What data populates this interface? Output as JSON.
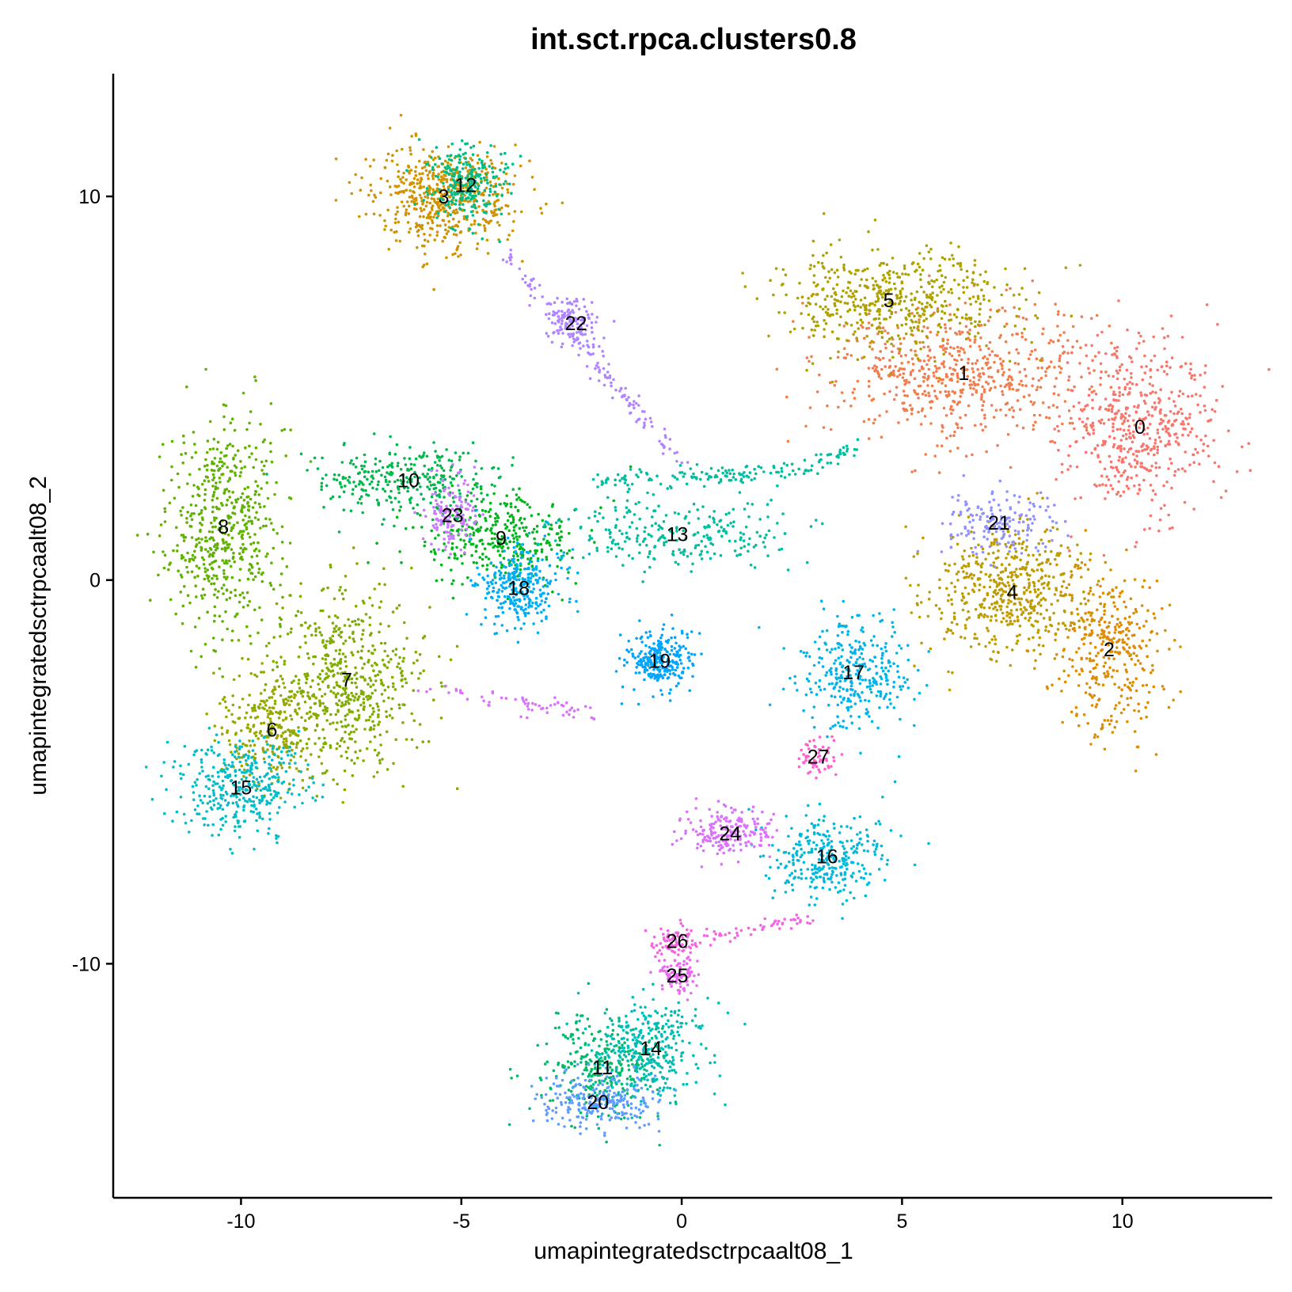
{
  "chart_data": {
    "type": "scatter",
    "title": "int.sct.rpca.clusters0.8",
    "xlabel": "umapintegratedsctrpcaalt08_1",
    "ylabel": "umapintegratedsctrpcaalt08_2",
    "xlim": [
      -12.9,
      13.4
    ],
    "ylim": [
      -16.1,
      13.2
    ],
    "xticks": [
      -10,
      -5,
      0,
      5,
      10
    ],
    "xtick_labels": [
      "-10",
      "-5",
      "0",
      "5",
      "10"
    ],
    "yticks": [
      -10,
      0,
      10
    ],
    "ytick_labels": [
      "-10",
      "0",
      "10"
    ],
    "grid": false,
    "legend": "none",
    "clusters": [
      {
        "label": "0",
        "x": 10.4,
        "y": 4.0,
        "color": "#F8766D"
      },
      {
        "label": "1",
        "x": 6.4,
        "y": 5.4,
        "color": "#F17E4E"
      },
      {
        "label": "2",
        "x": 9.7,
        "y": -1.8,
        "color": "#DE8C00"
      },
      {
        "label": "3",
        "x": -5.4,
        "y": 10.0,
        "color": "#D09400"
      },
      {
        "label": "4",
        "x": 7.5,
        "y": -0.3,
        "color": "#BF9C00"
      },
      {
        "label": "5",
        "x": 4.7,
        "y": 7.3,
        "color": "#ADA200"
      },
      {
        "label": "6",
        "x": -9.3,
        "y": -3.9,
        "color": "#98A800"
      },
      {
        "label": "7",
        "x": -7.6,
        "y": -2.6,
        "color": "#80AD00"
      },
      {
        "label": "8",
        "x": -10.4,
        "y": 1.4,
        "color": "#5FB200"
      },
      {
        "label": "9",
        "x": -4.1,
        "y": 1.1,
        "color": "#00B61B"
      },
      {
        "label": "10",
        "x": -6.2,
        "y": 2.6,
        "color": "#00B94E"
      },
      {
        "label": "11",
        "x": -1.8,
        "y": -12.7,
        "color": "#00BB6C"
      },
      {
        "label": "12",
        "x": -4.9,
        "y": 10.3,
        "color": "#00BD87"
      },
      {
        "label": "13",
        "x": -0.1,
        "y": 1.2,
        "color": "#00BE9F"
      },
      {
        "label": "14",
        "x": -0.7,
        "y": -12.2,
        "color": "#00BEB5"
      },
      {
        "label": "15",
        "x": -10.0,
        "y": -5.4,
        "color": "#00BDCA"
      },
      {
        "label": "16",
        "x": 3.3,
        "y": -7.2,
        "color": "#00BADB"
      },
      {
        "label": "17",
        "x": 3.9,
        "y": -2.4,
        "color": "#00B5EA"
      },
      {
        "label": "18",
        "x": -3.7,
        "y": -0.2,
        "color": "#00AEF5"
      },
      {
        "label": "19",
        "x": -0.5,
        "y": -2.1,
        "color": "#00A5FE"
      },
      {
        "label": "20",
        "x": -1.9,
        "y": -13.6,
        "color": "#619CFF"
      },
      {
        "label": "21",
        "x": 7.2,
        "y": 1.5,
        "color": "#8F92FF"
      },
      {
        "label": "22",
        "x": -2.4,
        "y": 6.7,
        "color": "#B086FF"
      },
      {
        "label": "23",
        "x": -5.2,
        "y": 1.7,
        "color": "#C77CFF"
      },
      {
        "label": "24",
        "x": 1.1,
        "y": -6.6,
        "color": "#DB72FB"
      },
      {
        "label": "25",
        "x": -0.1,
        "y": -10.3,
        "color": "#EA6AF1"
      },
      {
        "label": "26",
        "x": -0.1,
        "y": -9.4,
        "color": "#F564E3"
      },
      {
        "label": "27",
        "x": 3.1,
        "y": -4.6,
        "color": "#FF61CC"
      }
    ]
  }
}
